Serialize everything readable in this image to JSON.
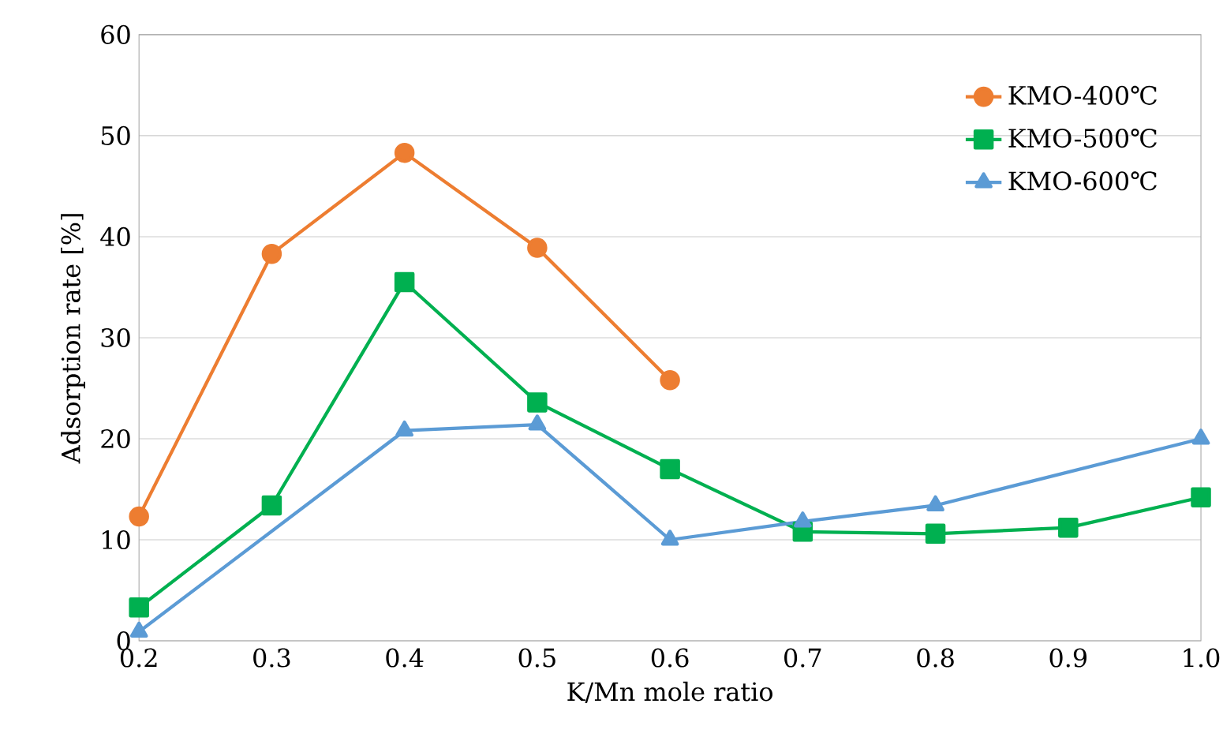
{
  "chart_data": {
    "type": "line",
    "xlabel": "K/Mn mole ratio",
    "ylabel": "Adsorption rate [%]",
    "xlim": [
      0.2,
      1.0
    ],
    "xticks": [
      {
        "value": 0.2,
        "label": "0.2"
      },
      {
        "value": 0.3,
        "label": "0.3"
      },
      {
        "value": 0.4,
        "label": "0.4"
      },
      {
        "value": 0.5,
        "label": "0.5"
      },
      {
        "value": 0.6,
        "label": "0.6"
      },
      {
        "value": 0.7,
        "label": "0.7"
      },
      {
        "value": 0.8,
        "label": "0.8"
      },
      {
        "value": 0.9,
        "label": "0.9"
      },
      {
        "value": 1.0,
        "label": "1.0"
      }
    ],
    "ylim": [
      0,
      60
    ],
    "yticks": [
      0,
      10,
      20,
      30,
      40,
      50,
      60
    ],
    "grid": "y",
    "legend": "top right",
    "line_style": "solid",
    "series": [
      {
        "name": "KMO-400℃",
        "color": "#ed7d31",
        "marker": "circle",
        "x": [
          0.2,
          0.3,
          0.4,
          0.5,
          0.6
        ],
        "values": [
          12.3,
          38.3,
          48.3,
          38.9,
          25.8
        ]
      },
      {
        "name": "KMO-500℃",
        "color": "#00b050",
        "marker": "square",
        "x": [
          0.2,
          0.3,
          0.4,
          0.5,
          0.6,
          0.7,
          0.8,
          0.9,
          1.0
        ],
        "values": [
          3.3,
          13.4,
          35.5,
          23.6,
          17.0,
          10.8,
          10.6,
          11.2,
          14.2
        ]
      },
      {
        "name": "KMO-600℃",
        "color": "#5b9bd5",
        "marker": "triangle",
        "x": [
          0.2,
          0.4,
          0.5,
          0.6,
          0.7,
          0.8,
          1.0
        ],
        "values": [
          0.9,
          20.8,
          21.4,
          10.0,
          11.8,
          13.4,
          20.0
        ]
      }
    ]
  }
}
